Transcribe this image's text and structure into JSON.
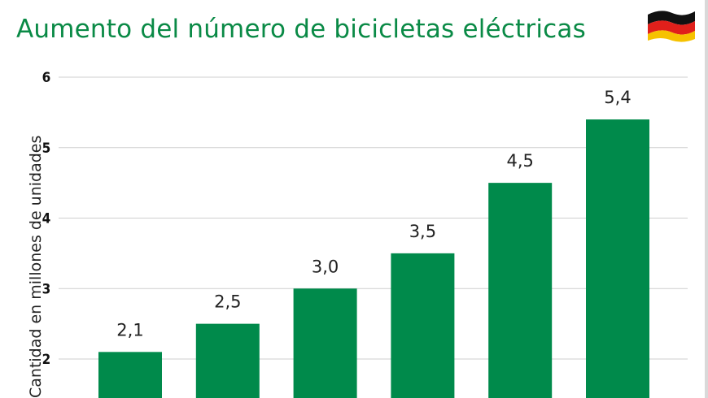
{
  "title": "Aumento del número de bicicletas eléctricas",
  "flag_icon": "germany-flag-icon",
  "colors": {
    "bar": "#008a4b",
    "title": "#0a8a46",
    "grid": "#cfcfcf"
  },
  "chart_data": {
    "type": "bar",
    "title": "Aumento del número de bicicletas eléctricas",
    "xlabel": "",
    "ylabel": "Cantidad en millones de unidades",
    "ylim": [
      2,
      6
    ],
    "yticks": [
      "2",
      "3",
      "4",
      "5",
      "6"
    ],
    "grid": true,
    "values": [
      2.1,
      2.5,
      3.0,
      3.5,
      4.5,
      5.4
    ],
    "value_labels": [
      "2,1",
      "2,5",
      "3,0",
      "3,5",
      "4,5",
      "5,4"
    ]
  }
}
